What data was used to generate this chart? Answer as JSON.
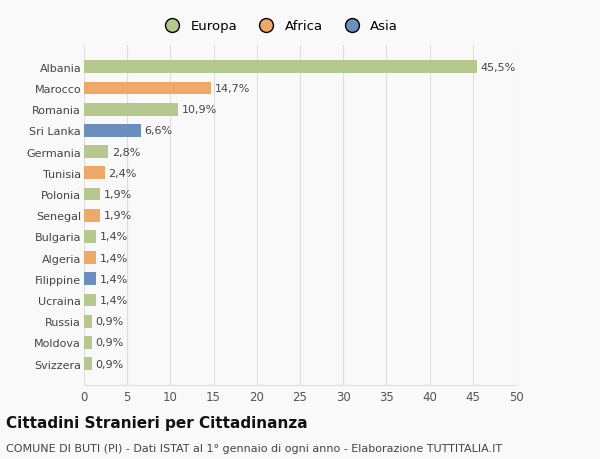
{
  "countries": [
    "Albania",
    "Marocco",
    "Romania",
    "Sri Lanka",
    "Germania",
    "Tunisia",
    "Polonia",
    "Senegal",
    "Bulgaria",
    "Algeria",
    "Filippine",
    "Ucraina",
    "Russia",
    "Moldova",
    "Svizzera"
  ],
  "values": [
    45.5,
    14.7,
    10.9,
    6.6,
    2.8,
    2.4,
    1.9,
    1.9,
    1.4,
    1.4,
    1.4,
    1.4,
    0.9,
    0.9,
    0.9
  ],
  "labels": [
    "45,5%",
    "14,7%",
    "10,9%",
    "6,6%",
    "2,8%",
    "2,4%",
    "1,9%",
    "1,9%",
    "1,4%",
    "1,4%",
    "1,4%",
    "1,4%",
    "0,9%",
    "0,9%",
    "0,9%"
  ],
  "continents": [
    "Europa",
    "Africa",
    "Europa",
    "Asia",
    "Europa",
    "Africa",
    "Europa",
    "Africa",
    "Europa",
    "Africa",
    "Asia",
    "Europa",
    "Europa",
    "Europa",
    "Europa"
  ],
  "colors": {
    "Europa": "#b5c98e",
    "Africa": "#f0a868",
    "Asia": "#6a8fbf"
  },
  "xlim": [
    0,
    50
  ],
  "xticks": [
    0,
    5,
    10,
    15,
    20,
    25,
    30,
    35,
    40,
    45,
    50
  ],
  "title": "Cittadini Stranieri per Cittadinanza",
  "subtitle": "COMUNE DI BUTI (PI) - Dati ISTAT al 1° gennaio di ogni anno - Elaborazione TUTTITALIA.IT",
  "bg_color": "#f9f9f9",
  "grid_color": "#dddddd",
  "bar_height": 0.6,
  "label_fontsize": 8,
  "country_fontsize": 8,
  "title_fontsize": 11,
  "subtitle_fontsize": 8
}
